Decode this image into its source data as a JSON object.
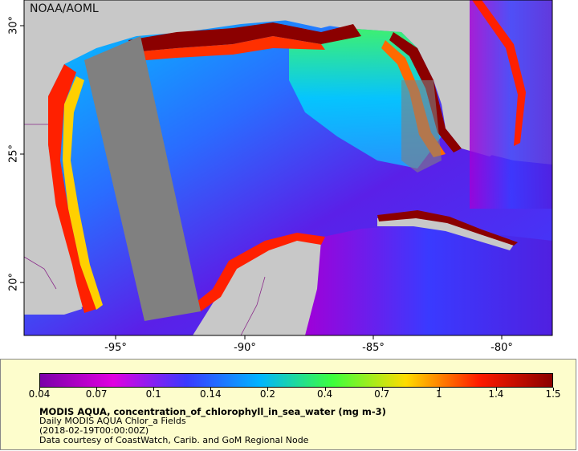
{
  "map": {
    "credit": "NOAA/AOML",
    "lat_labels": [
      "30°",
      "25°",
      "20°"
    ],
    "lon_labels": [
      "-95°",
      "-90°",
      "-85°",
      "-80°"
    ]
  },
  "legend": {
    "ticks": [
      "0.04",
      "0.07",
      "0.1",
      "0.14",
      "0.2",
      "0.4",
      "0.7",
      "1",
      "1.4",
      "1.5"
    ],
    "colors": {
      "deep": "#7a00a8",
      "magenta": "#e000e0",
      "blue": "#3a3aff",
      "cyan": "#00b4ff",
      "green": "#3cff3c",
      "yellow": "#ffdc00",
      "red": "#ff1a00",
      "darkred": "#8b0000",
      "land": "#c8c8c8",
      "nodata": "#808080"
    },
    "variable": "MODIS AQUA, concentration_of_chlorophyll_in_sea_water (mg m-3)",
    "dataset": "Daily MODIS AQUA Chlor_a Fields",
    "time": "(2018-02-19T00:00:00Z)",
    "courtesy": "Data courtesy of CoastWatch, Carib. and GoM Regional Node"
  }
}
